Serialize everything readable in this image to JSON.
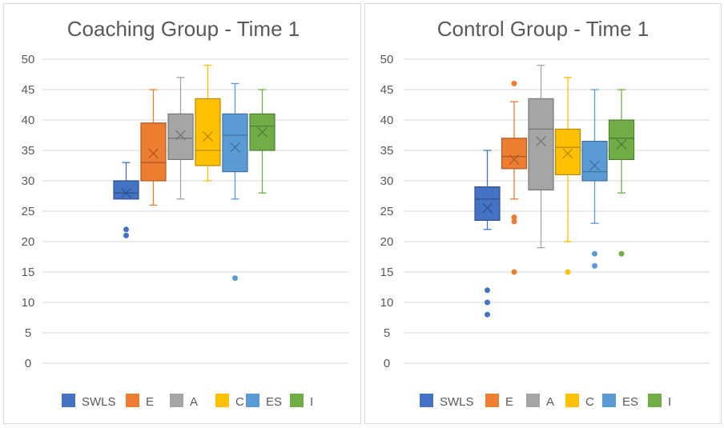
{
  "chart_data": [
    {
      "type": "boxplot",
      "title": "Coaching Group - Time 1",
      "ylim": [
        0,
        50
      ],
      "ytick_step": 5,
      "yticks": [
        "0",
        "5",
        "10",
        "15",
        "20",
        "25",
        "30",
        "35",
        "40",
        "45",
        "50"
      ],
      "grid": true,
      "legend_position": "bottom",
      "series": [
        {
          "name": "SWLS",
          "color": "#4472c4",
          "min": 27,
          "q1": 27,
          "median": 28,
          "q3": 30,
          "max": 33,
          "mean": 28,
          "outliers": [
            22,
            21
          ]
        },
        {
          "name": "E",
          "color": "#ed7d31",
          "min": 26,
          "q1": 30,
          "median": 33,
          "q3": 39.5,
          "max": 45,
          "mean": 34.5,
          "outliers": []
        },
        {
          "name": "A",
          "color": "#a5a5a5",
          "min": 27,
          "q1": 33.5,
          "median": 37,
          "q3": 41,
          "max": 47,
          "mean": 37.5,
          "outliers": []
        },
        {
          "name": "C",
          "color": "#ffc000",
          "min": 30,
          "q1": 32.5,
          "median": 35,
          "q3": 43.5,
          "max": 49,
          "mean": 37.3,
          "outliers": []
        },
        {
          "name": "ES",
          "color": "#5b9bd5",
          "min": 27,
          "q1": 31.5,
          "median": 37.5,
          "q3": 41,
          "max": 46,
          "mean": 35.5,
          "outliers": [
            14
          ]
        },
        {
          "name": "I",
          "color": "#70ad47",
          "min": 28,
          "q1": 35,
          "median": 39,
          "q3": 41,
          "max": 45,
          "mean": 38,
          "outliers": []
        }
      ]
    },
    {
      "type": "boxplot",
      "title": "Control Group - Time 1",
      "ylim": [
        0,
        50
      ],
      "ytick_step": 5,
      "yticks": [
        "0",
        "5",
        "10",
        "15",
        "20",
        "25",
        "30",
        "35",
        "40",
        "45",
        "50"
      ],
      "grid": true,
      "legend_position": "bottom",
      "series": [
        {
          "name": "SWLS",
          "color": "#4472c4",
          "min": 22,
          "q1": 23.5,
          "median": 27,
          "q3": 29,
          "max": 35,
          "mean": 25.5,
          "outliers": [
            12,
            10,
            8
          ]
        },
        {
          "name": "E",
          "color": "#ed7d31",
          "min": 27,
          "q1": 32,
          "median": 34,
          "q3": 37,
          "max": 43,
          "mean": 33.5,
          "outliers": [
            46,
            24,
            23.3,
            15
          ]
        },
        {
          "name": "A",
          "color": "#a5a5a5",
          "min": 19,
          "q1": 28.5,
          "median": 38.5,
          "q3": 43.5,
          "max": 49,
          "mean": 36.5,
          "outliers": []
        },
        {
          "name": "C",
          "color": "#ffc000",
          "min": 20,
          "q1": 31,
          "median": 35.5,
          "q3": 38.5,
          "max": 47,
          "mean": 34.5,
          "outliers": [
            15
          ]
        },
        {
          "name": "ES",
          "color": "#5b9bd5",
          "min": 23,
          "q1": 30,
          "median": 31.5,
          "q3": 36.5,
          "max": 45,
          "mean": 32.5,
          "outliers": [
            18,
            16
          ]
        },
        {
          "name": "I",
          "color": "#70ad47",
          "min": 28,
          "q1": 33.5,
          "median": 37,
          "q3": 40,
          "max": 45,
          "mean": 36,
          "outliers": [
            18
          ]
        }
      ]
    }
  ]
}
